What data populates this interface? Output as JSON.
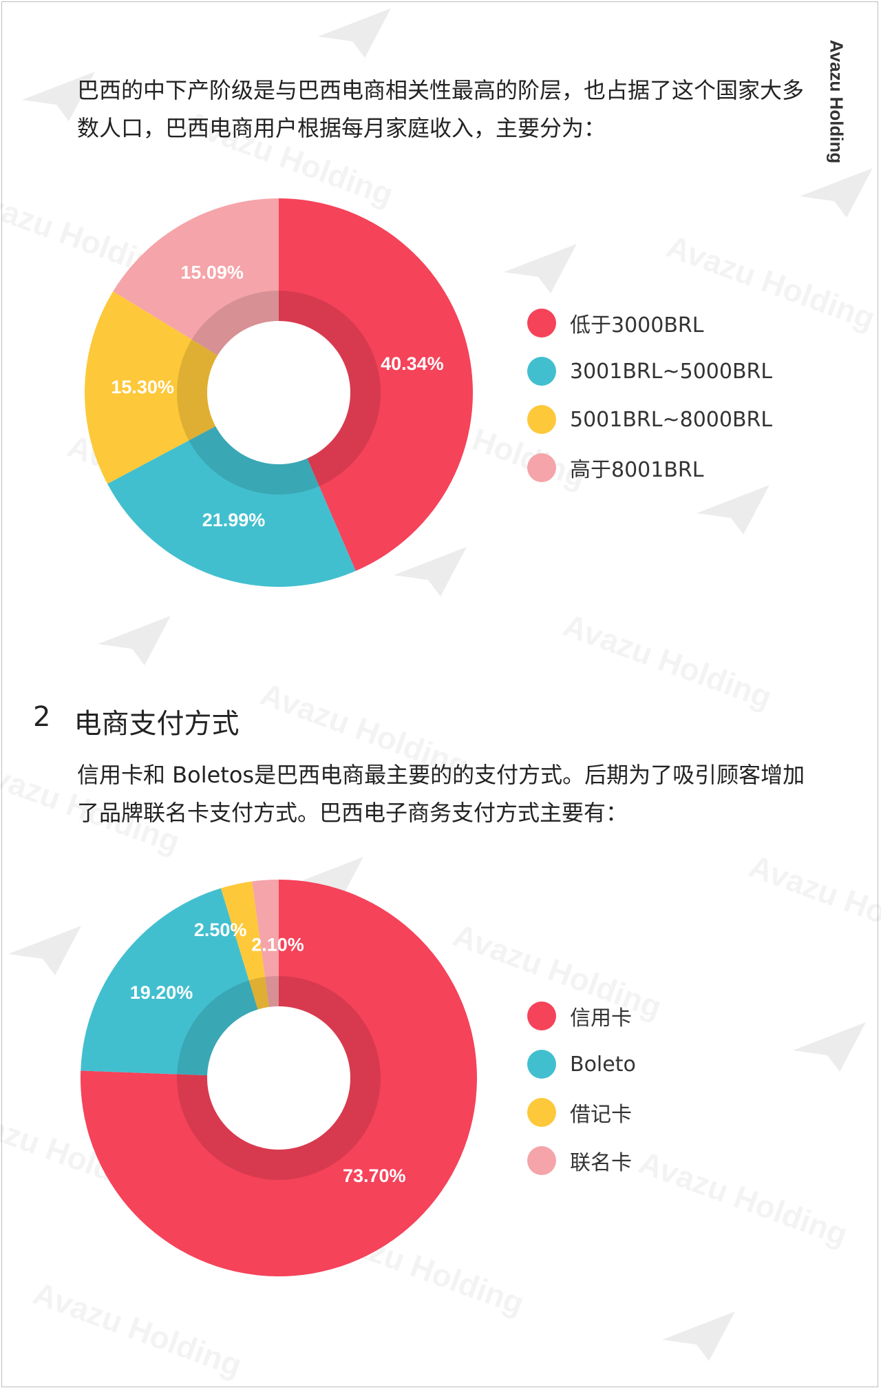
{
  "brand": "Avazu Holding",
  "intro_text": "巴西的中下产阶级是与巴西电商相关性最高的阶层，也占据了这个国家大多数人口，巴西电商用户根据每月家庭收入，主要分为：",
  "section": {
    "number": "2",
    "title": "电商支付方式"
  },
  "payment_text": "信用卡和 Boletos是巴西电商最主要的的支付方式。后期为了吸引顾客增加了品牌联名卡支付方式。巴西电子商务支付方式主要有：",
  "colors": {
    "red": "#f5435a",
    "teal": "#42bfcf",
    "yellow": "#fdc83a",
    "pink": "#f5a4a9"
  },
  "chart_data": [
    {
      "type": "pie",
      "subtype": "donut",
      "title": "",
      "categories": [
        "低于3000BRL",
        "3001BRL~5000BRL",
        "5001BRL~8000BRL",
        "高于8001BRL"
      ],
      "values": [
        40.34,
        21.99,
        15.3,
        15.09
      ],
      "labels": [
        "40.34%",
        "21.99%",
        "15.30%",
        "15.09%"
      ],
      "colors": [
        "#f5435a",
        "#42bfcf",
        "#fdc83a",
        "#f5a4a9"
      ],
      "legend_position": "right"
    },
    {
      "type": "pie",
      "subtype": "donut",
      "title": "",
      "categories": [
        "信用卡",
        "Boleto",
        "借记卡",
        "联名卡"
      ],
      "values": [
        73.7,
        19.2,
        2.5,
        2.1
      ],
      "labels": [
        "73.70%",
        "19.20%",
        "2.50%",
        "2.10%"
      ],
      "colors": [
        "#f5435a",
        "#42bfcf",
        "#fdc83a",
        "#f5a4a9"
      ],
      "legend_position": "right"
    }
  ]
}
